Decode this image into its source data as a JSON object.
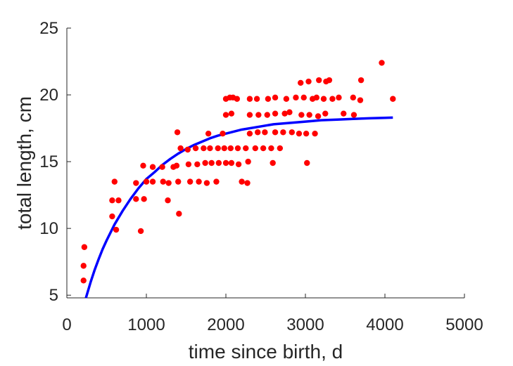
{
  "chart_data": {
    "type": "scatter",
    "title": "",
    "xlabel": "time since birth, d",
    "ylabel": "total length, cm",
    "xlim": [
      0,
      5000
    ],
    "ylim": [
      4.8,
      25
    ],
    "xticks": [
      0,
      1000,
      2000,
      3000,
      4000,
      5000
    ],
    "yticks": [
      5,
      10,
      15,
      20,
      25
    ],
    "grid": false,
    "legend": "none",
    "series": [
      {
        "kind": "points",
        "color": "#ff0000",
        "points": [
          [
            220,
            8.6
          ],
          [
            210,
            7.2
          ],
          [
            210,
            6.1
          ],
          [
            570,
            12.1
          ],
          [
            570,
            10.9
          ],
          [
            600,
            13.5
          ],
          [
            620,
            9.9
          ],
          [
            650,
            12.1
          ],
          [
            870,
            13.4
          ],
          [
            870,
            12.2
          ],
          [
            930,
            9.8
          ],
          [
            960,
            14.7
          ],
          [
            970,
            12.2
          ],
          [
            1000,
            13.5
          ],
          [
            1080,
            14.6
          ],
          [
            1080,
            13.5
          ],
          [
            1200,
            14.6
          ],
          [
            1210,
            13.5
          ],
          [
            1270,
            12.1
          ],
          [
            1280,
            13.4
          ],
          [
            1340,
            14.6
          ],
          [
            1380,
            14.7
          ],
          [
            1390,
            17.2
          ],
          [
            1400,
            13.5
          ],
          [
            1410,
            11.1
          ],
          [
            1430,
            16.0
          ],
          [
            1520,
            15.9
          ],
          [
            1530,
            14.8
          ],
          [
            1550,
            13.5
          ],
          [
            1620,
            16.0
          ],
          [
            1640,
            14.8
          ],
          [
            1660,
            13.5
          ],
          [
            1720,
            16.0
          ],
          [
            1740,
            14.9
          ],
          [
            1760,
            13.4
          ],
          [
            1780,
            17.1
          ],
          [
            1800,
            16.0
          ],
          [
            1820,
            14.9
          ],
          [
            1880,
            13.5
          ],
          [
            1900,
            16.0
          ],
          [
            1910,
            14.9
          ],
          [
            1960,
            17.1
          ],
          [
            1980,
            16.0
          ],
          [
            2000,
            14.9
          ],
          [
            2000,
            19.7
          ],
          [
            2000,
            18.5
          ],
          [
            2050,
            19.8
          ],
          [
            2060,
            16.0
          ],
          [
            2070,
            14.9
          ],
          [
            2070,
            18.6
          ],
          [
            2090,
            19.8
          ],
          [
            2140,
            19.7
          ],
          [
            2150,
            16.0
          ],
          [
            2160,
            14.8
          ],
          [
            2200,
            13.5
          ],
          [
            2250,
            16.0
          ],
          [
            2270,
            13.4
          ],
          [
            2280,
            15.0
          ],
          [
            2300,
            17.1
          ],
          [
            2300,
            18.5
          ],
          [
            2300,
            19.7
          ],
          [
            2370,
            16.0
          ],
          [
            2390,
            19.7
          ],
          [
            2400,
            17.2
          ],
          [
            2410,
            18.5
          ],
          [
            2470,
            16.0
          ],
          [
            2490,
            17.2
          ],
          [
            2520,
            18.5
          ],
          [
            2530,
            19.7
          ],
          [
            2570,
            16.0
          ],
          [
            2590,
            14.9
          ],
          [
            2620,
            18.6
          ],
          [
            2620,
            19.8
          ],
          [
            2620,
            17.2
          ],
          [
            2680,
            16.0
          ],
          [
            2720,
            17.2
          ],
          [
            2740,
            18.6
          ],
          [
            2760,
            19.7
          ],
          [
            2800,
            18.7
          ],
          [
            2830,
            17.2
          ],
          [
            2880,
            19.8
          ],
          [
            2920,
            17.1
          ],
          [
            2940,
            20.9
          ],
          [
            2950,
            18.5
          ],
          [
            2980,
            19.8
          ],
          [
            3010,
            17.1
          ],
          [
            3020,
            14.9
          ],
          [
            3040,
            21.0
          ],
          [
            3050,
            18.5
          ],
          [
            3090,
            19.7
          ],
          [
            3120,
            17.1
          ],
          [
            3140,
            19.8
          ],
          [
            3160,
            18.4
          ],
          [
            3170,
            21.1
          ],
          [
            3230,
            19.7
          ],
          [
            3250,
            18.6
          ],
          [
            3260,
            21.0
          ],
          [
            3300,
            21.1
          ],
          [
            3340,
            19.7
          ],
          [
            3420,
            19.8
          ],
          [
            3480,
            18.6
          ],
          [
            3600,
            19.8
          ],
          [
            3610,
            18.5
          ],
          [
            3690,
            19.6
          ],
          [
            3700,
            21.1
          ],
          [
            3960,
            22.4
          ],
          [
            4100,
            19.7
          ]
        ]
      },
      {
        "kind": "curve",
        "color": "#0000ff",
        "points": [
          [
            240,
            4.8
          ],
          [
            260,
            5.2
          ],
          [
            300,
            6.0
          ],
          [
            350,
            6.9
          ],
          [
            400,
            7.7
          ],
          [
            450,
            8.45
          ],
          [
            500,
            9.1
          ],
          [
            600,
            10.3
          ],
          [
            700,
            11.3
          ],
          [
            800,
            12.2
          ],
          [
            900,
            13.0
          ],
          [
            1000,
            13.7
          ],
          [
            1100,
            14.2
          ],
          [
            1200,
            14.75
          ],
          [
            1300,
            15.2
          ],
          [
            1400,
            15.6
          ],
          [
            1500,
            15.95
          ],
          [
            1600,
            16.25
          ],
          [
            1700,
            16.5
          ],
          [
            1800,
            16.75
          ],
          [
            1900,
            16.95
          ],
          [
            2000,
            17.1
          ],
          [
            2200,
            17.4
          ],
          [
            2400,
            17.6
          ],
          [
            2600,
            17.8
          ],
          [
            2800,
            17.9
          ],
          [
            3000,
            18.0
          ],
          [
            3200,
            18.1
          ],
          [
            3400,
            18.15
          ],
          [
            3600,
            18.2
          ],
          [
            3800,
            18.25
          ],
          [
            4000,
            18.28
          ],
          [
            4100,
            18.3
          ]
        ]
      }
    ]
  }
}
